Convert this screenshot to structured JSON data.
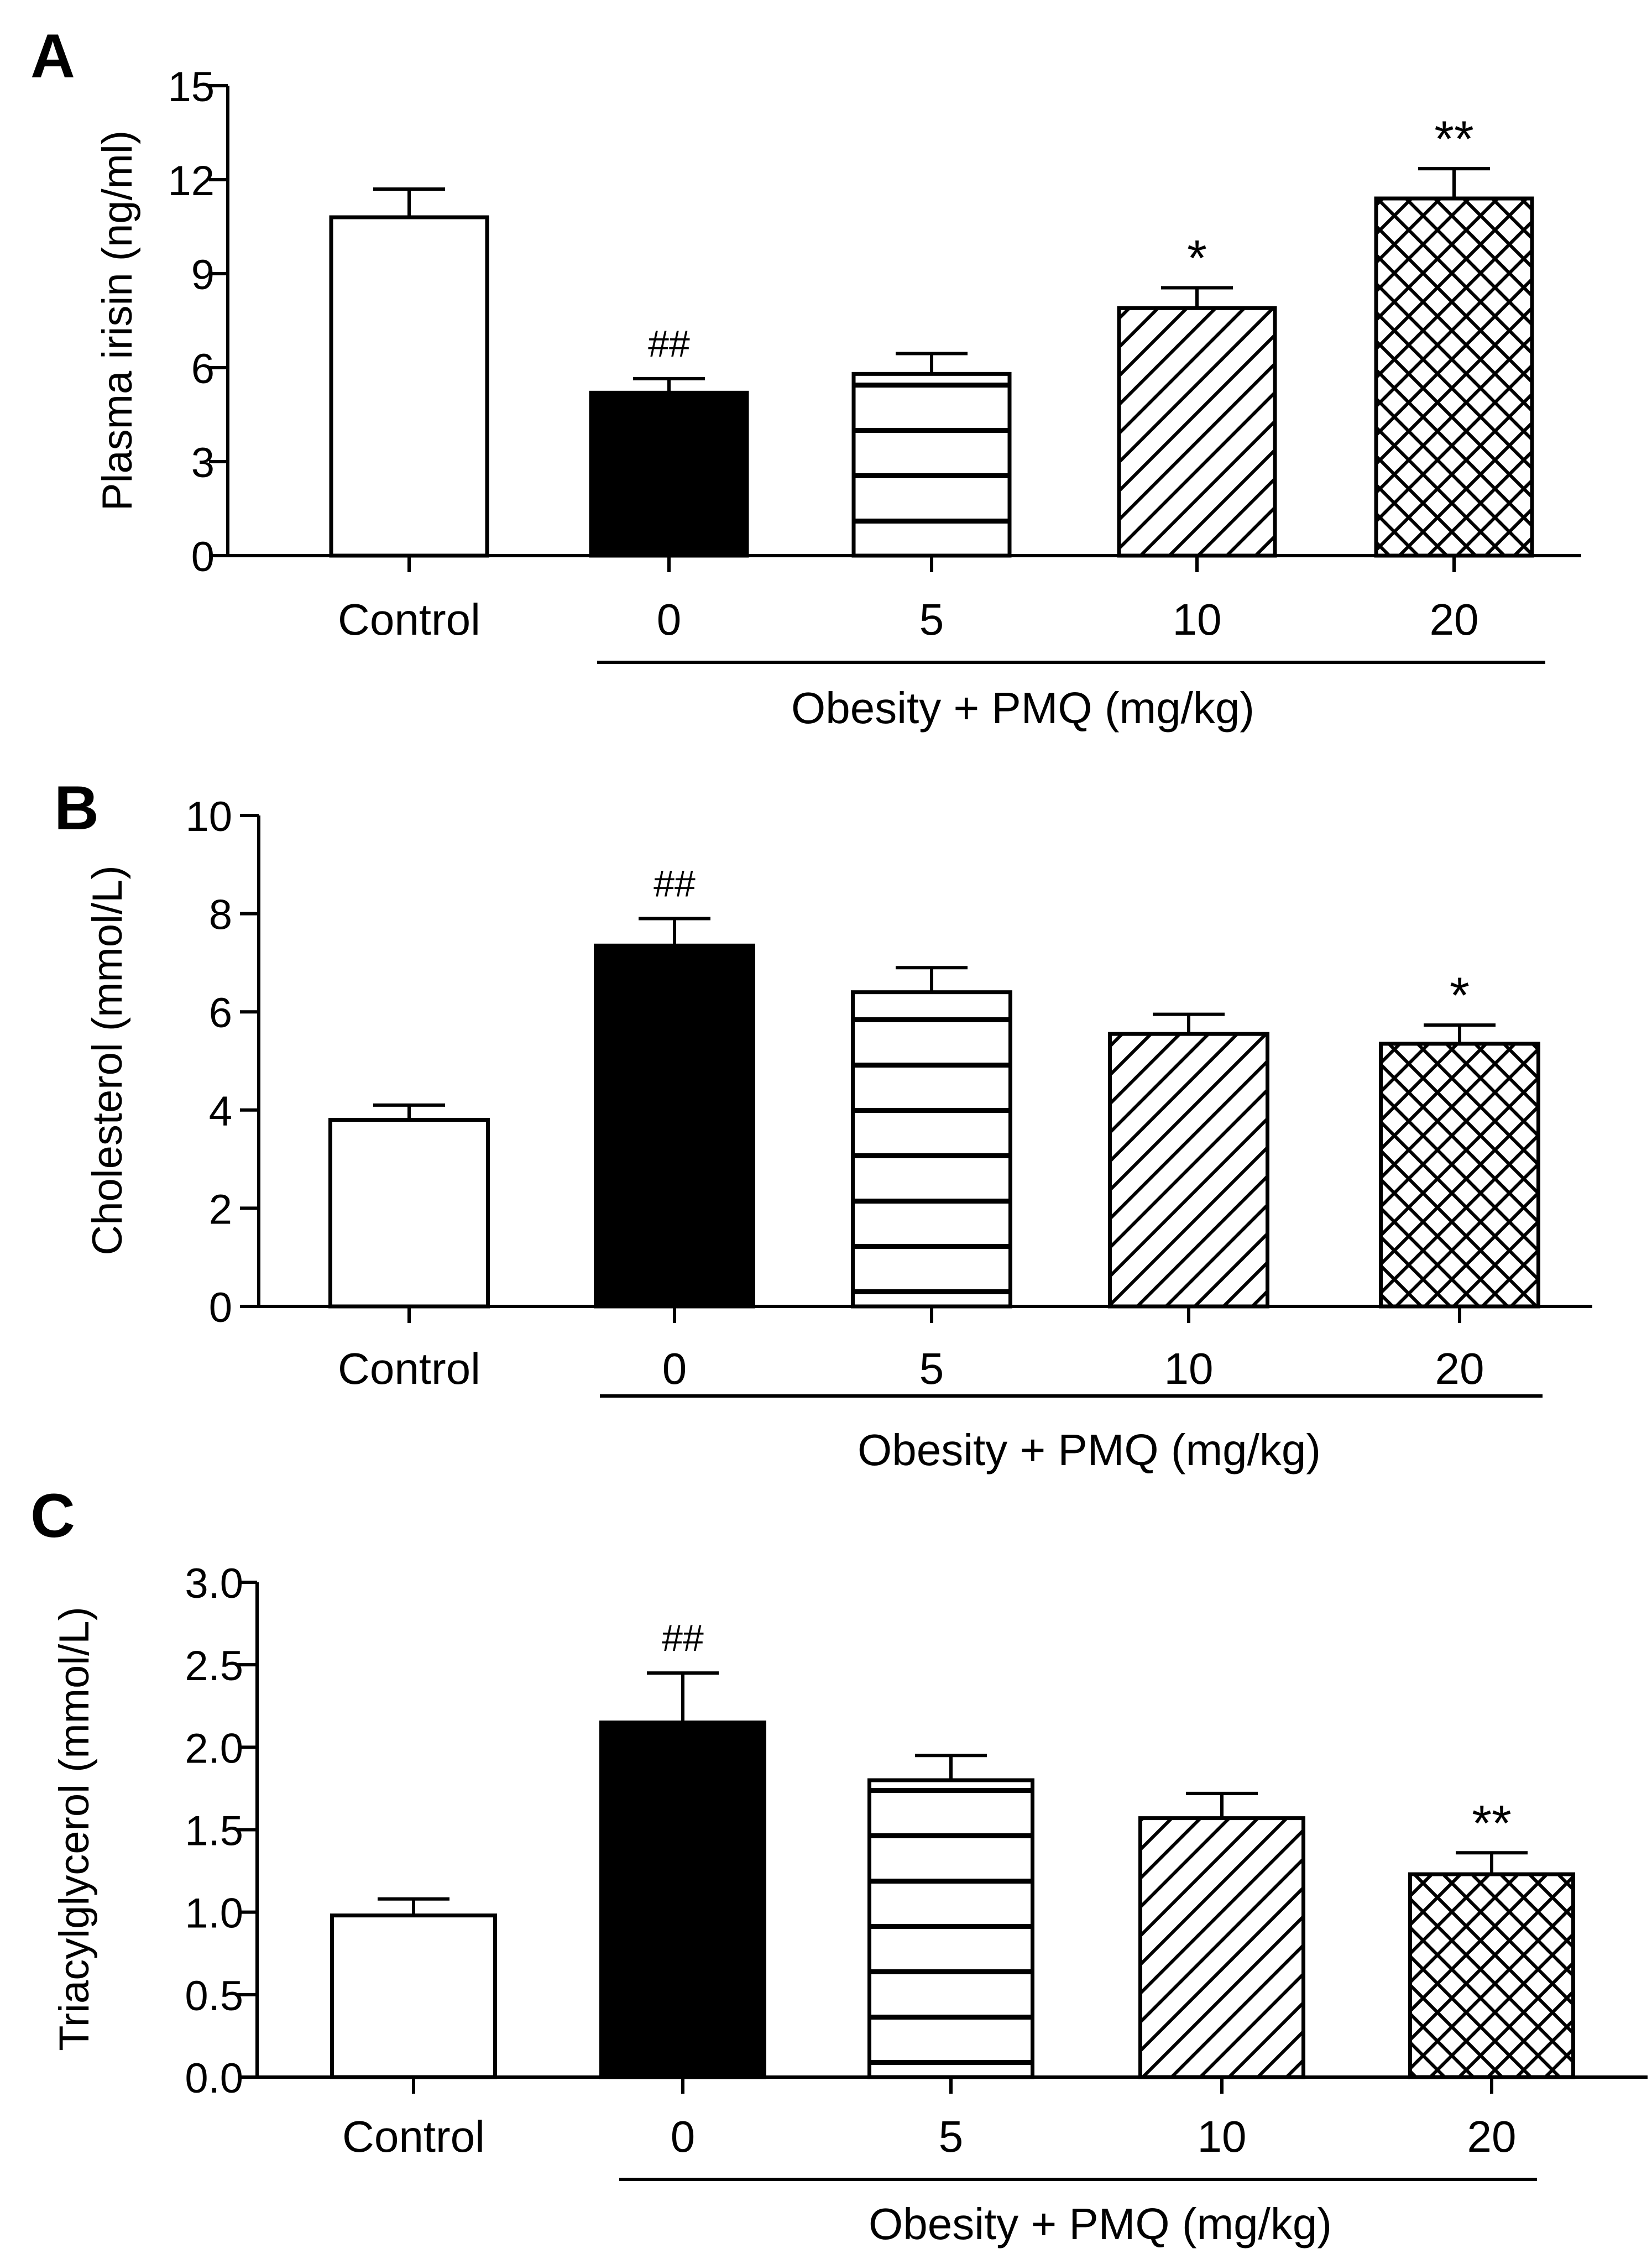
{
  "chart_data": [
    {
      "panel_letter": "A",
      "type": "bar",
      "categories": [
        "Control",
        "0",
        "5",
        "10",
        "20"
      ],
      "values": [
        10.8,
        5.2,
        5.8,
        7.9,
        11.4
      ],
      "errors": [
        0.9,
        0.45,
        0.65,
        0.65,
        0.95
      ],
      "annotations": [
        "",
        "##",
        "",
        "*",
        "**"
      ],
      "patterns": [
        "open",
        "solid",
        "horizontal",
        "diagonal",
        "crosshatch"
      ],
      "ylabel": "Plasma irisin (ng/ml)",
      "ylim": [
        0,
        15
      ],
      "yticks": [
        "0",
        "3",
        "6",
        "9",
        "12",
        "15"
      ],
      "group_label": "Obesity + PMQ (mg/kg)"
    },
    {
      "panel_letter": "B",
      "type": "bar",
      "categories": [
        "Control",
        "0",
        "5",
        "10",
        "20"
      ],
      "values": [
        3.8,
        7.35,
        6.4,
        5.55,
        5.35
      ],
      "errors": [
        0.3,
        0.55,
        0.5,
        0.4,
        0.38
      ],
      "annotations": [
        "",
        "##",
        "",
        "",
        "*"
      ],
      "patterns": [
        "open",
        "solid",
        "horizontal",
        "diagonal",
        "crosshatch"
      ],
      "ylabel": "Cholesterol (mmol/L)",
      "ylim": [
        0,
        10
      ],
      "yticks": [
        "0",
        "2",
        "4",
        "6",
        "8",
        "10"
      ],
      "group_label": "Obesity + PMQ (mg/kg)"
    },
    {
      "panel_letter": "C",
      "type": "bar",
      "categories": [
        "Control",
        "0",
        "5",
        "10",
        "20"
      ],
      "values": [
        0.98,
        2.15,
        1.8,
        1.57,
        1.23
      ],
      "errors": [
        0.1,
        0.3,
        0.15,
        0.15,
        0.13
      ],
      "annotations": [
        "",
        "##",
        "",
        "",
        "**"
      ],
      "patterns": [
        "open",
        "solid",
        "horizontal",
        "diagonal",
        "crosshatch"
      ],
      "ylabel": "Triacylglycerol (mmol/L)",
      "ylim": [
        0,
        3.0
      ],
      "yticks": [
        "0.0",
        "0.5",
        "1.0",
        "1.5",
        "2.0",
        "2.5",
        "3.0"
      ],
      "group_label": "Obesity + PMQ (mg/kg)"
    }
  ]
}
